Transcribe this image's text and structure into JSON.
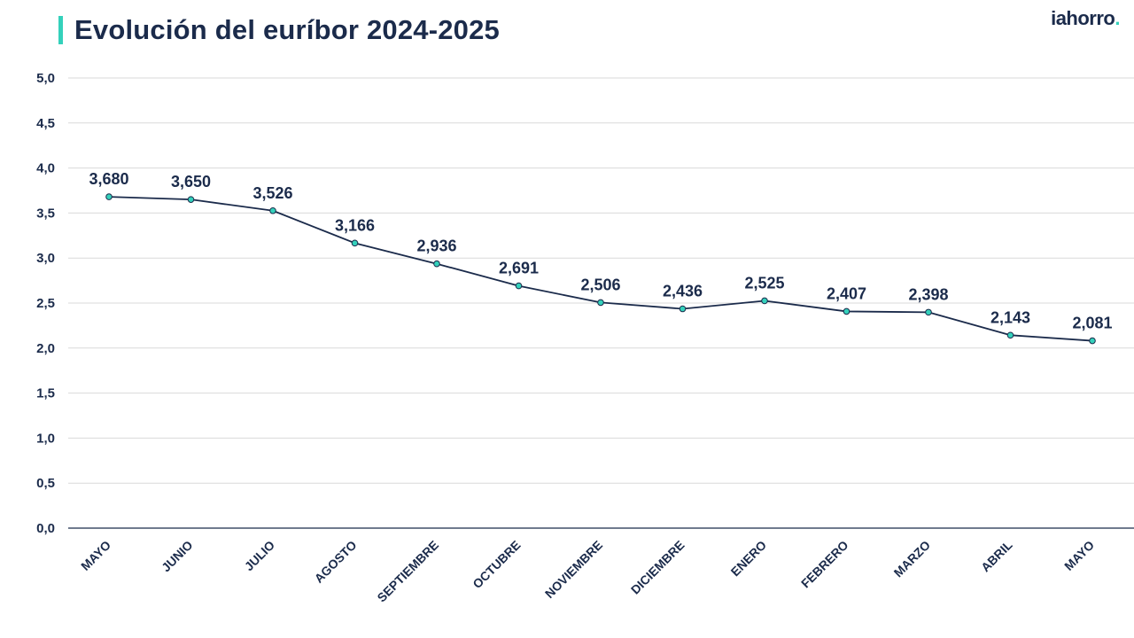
{
  "header": {
    "title": "Evolución del euríbor 2024-2025",
    "logo_text": "iahorro",
    "logo_dot": "."
  },
  "colors": {
    "title": "#1b2b4b",
    "accent": "#34d1bb",
    "line": "#1b2b4b",
    "marker_fill": "#34d1bb",
    "grid": "#d9d9d9"
  },
  "chart_data": {
    "type": "line",
    "title": "Evolución del euríbor 2024-2025",
    "categories": [
      "MAYO",
      "JUNIO",
      "JULIO",
      "AGOSTO",
      "SEPTIEMBRE",
      "OCTUBRE",
      "NOVIEMBRE",
      "DICIEMBRE",
      "ENERO",
      "FEBRERO",
      "MARZO",
      "ABRIL",
      "MAYO"
    ],
    "values": [
      3.68,
      3.65,
      3.526,
      3.166,
      2.936,
      2.691,
      2.506,
      2.436,
      2.525,
      2.407,
      2.398,
      2.143,
      2.081
    ],
    "value_labels": [
      "3,680",
      "3,650",
      "3,526",
      "3,166",
      "2,936",
      "2,691",
      "2,506",
      "2,436",
      "2,525",
      "2,407",
      "2,398",
      "2,143",
      "2,081"
    ],
    "y_ticks": [
      0,
      0.5,
      1,
      1.5,
      2,
      2.5,
      3,
      3.5,
      4,
      4.5,
      5
    ],
    "y_tick_labels": [
      "0,0",
      "0,5",
      "1,0",
      "1,5",
      "2,0",
      "2,5",
      "3,0",
      "3,5",
      "4,0",
      "4,5",
      "5,0"
    ],
    "ylim": [
      0,
      5
    ],
    "grid": true,
    "legend": "none"
  }
}
